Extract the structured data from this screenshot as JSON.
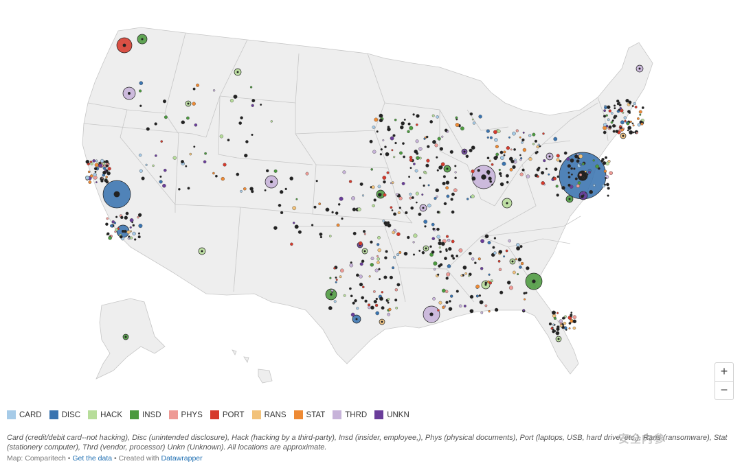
{
  "map": {
    "zoom_in_label": "+",
    "zoom_out_label": "−"
  },
  "legend": [
    {
      "code": "CARD",
      "color": "#a6cbe8"
    },
    {
      "code": "DISC",
      "color": "#3a74b0"
    },
    {
      "code": "HACK",
      "color": "#b7dd9a"
    },
    {
      "code": "INSD",
      "color": "#4c9a3f"
    },
    {
      "code": "PHYS",
      "color": "#ee9a95"
    },
    {
      "code": "PORT",
      "color": "#d63a2c"
    },
    {
      "code": "RANS",
      "color": "#f2c27a"
    },
    {
      "code": "STAT",
      "color": "#ee8a34"
    },
    {
      "code": "THRD",
      "color": "#c7b3d9"
    },
    {
      "code": "UNKN",
      "color": "#6a3d9a"
    }
  ],
  "caption": "Card (credit/debit card--not hacking), Disc (unintended disclosure), Hack (hacking by a third-party), Insd (insider, employee,), Phys (physical documents), Port (laptops, USB, hard drive, etc.), Rans (ransomware), Stat (stationery computer), Thrd (vendor, processor) Unkn (Unknown). All locations are approximate.",
  "footer": {
    "source_prefix": "Map: Comparitech •",
    "get_data": "Get the data",
    "created_prefix": "• Created with",
    "datawrapper": "Datawrapper"
  },
  "watermark": "安全内参"
}
